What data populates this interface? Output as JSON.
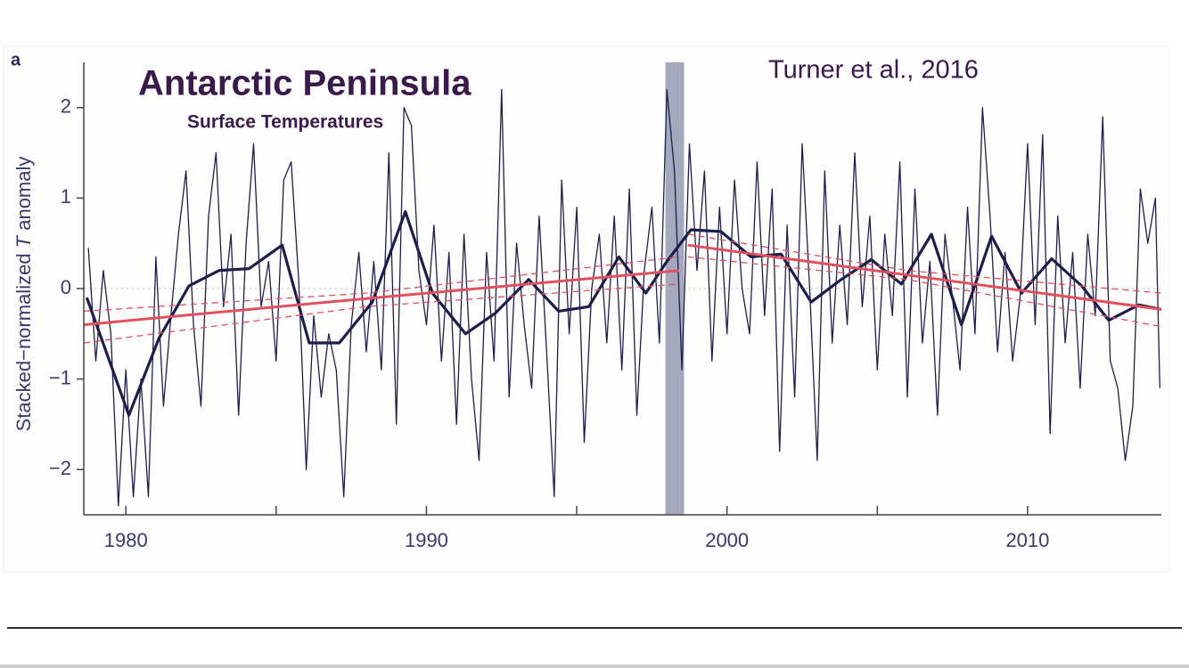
{
  "chart_data": {
    "type": "line",
    "panel_label": "a",
    "title": "Antarctic Peninsula",
    "subtitle": "Surface Temperatures",
    "annotation": "Turner et al., 2016",
    "ylabel": [
      "Stacked−normalized ",
      "T",
      " anomaly"
    ],
    "xlim": [
      1978.6,
      2014.45
    ],
    "ylim": [
      -2.5,
      2.5
    ],
    "xticks": [
      1980,
      1990,
      2000,
      2010
    ],
    "xminor_ticks": [
      1985,
      1995,
      2005
    ],
    "yticks": [
      {
        "value": -2,
        "label": "−2"
      },
      {
        "value": -1,
        "label": "−1"
      },
      0,
      1,
      2
    ],
    "reference_line": 0,
    "highlight": [
      1997.95,
      1998.57
    ],
    "series": [
      {
        "color": "#1e1e4a",
        "width": 1.3,
        "style": "solid",
        "x": [
          1978.75,
          1979,
          1979.25,
          1979.5,
          1979.75,
          1980,
          1980.25,
          1980.5,
          1980.75,
          1981,
          1981.25,
          1981.5,
          1981.75,
          1982,
          1982.25,
          1982.5,
          1982.75,
          1983,
          1983.25,
          1983.5,
          1983.75,
          1984,
          1984.25,
          1984.5,
          1984.75,
          1985,
          1985.25,
          1985.5,
          1985.75,
          1986,
          1986.25,
          1986.5,
          1986.75,
          1987,
          1987.25,
          1987.5,
          1987.75,
          1988,
          1988.25,
          1988.5,
          1988.75,
          1989,
          1989.25,
          1989.5,
          1989.75,
          1990,
          1990.25,
          1990.5,
          1990.75,
          1991,
          1991.25,
          1991.5,
          1991.75,
          1992,
          1992.25,
          1992.5,
          1992.75,
          1993,
          1993.25,
          1993.5,
          1993.75,
          1994,
          1994.25,
          1994.5,
          1994.75,
          1995,
          1995.25,
          1995.5,
          1995.75,
          1996,
          1996.25,
          1996.5,
          1996.75,
          1997,
          1997.25,
          1997.5,
          1997.75,
          1998,
          1998.25,
          1998.5,
          1998.75,
          1999,
          1999.25,
          1999.5,
          1999.75,
          2000,
          2000.25,
          2000.5,
          2000.75,
          2001,
          2001.25,
          2001.5,
          2001.75,
          2002,
          2002.25,
          2002.5,
          2002.75,
          2003,
          2003.25,
          2003.5,
          2003.75,
          2004,
          2004.25,
          2004.5,
          2004.75,
          2005,
          2005.25,
          2005.5,
          2005.75,
          2006,
          2006.25,
          2006.5,
          2006.75,
          2007,
          2007.25,
          2007.5,
          2007.75,
          2008,
          2008.25,
          2008.5,
          2008.75,
          2009,
          2009.25,
          2009.5,
          2009.75,
          2010,
          2010.25,
          2010.5,
          2010.75,
          2011,
          2011.25,
          2011.5,
          2011.75,
          2012,
          2012.25,
          2012.5,
          2012.75,
          2013,
          2013.25,
          2013.5,
          2013.75,
          2014,
          2014.25,
          2014.4
        ],
        "values": [
          0.45,
          -0.8,
          0.2,
          -0.5,
          -2.4,
          -0.9,
          -2.3,
          -1.0,
          -2.3,
          0.35,
          -1.3,
          -0.3,
          0.6,
          1.3,
          -0.4,
          -1.3,
          0.8,
          1.5,
          -0.2,
          0.6,
          -1.4,
          0.5,
          1.6,
          -0.2,
          0.3,
          -0.8,
          1.2,
          1.4,
          0.1,
          -2.0,
          -0.3,
          -1.2,
          -0.5,
          -0.9,
          -2.3,
          -0.4,
          0.4,
          -0.7,
          0.3,
          -0.9,
          1.5,
          -1.5,
          2.0,
          1.8,
          0.2,
          -0.4,
          0.7,
          -0.8,
          0.4,
          -1.5,
          0.6,
          -1.0,
          -1.9,
          0.4,
          -0.8,
          2.2,
          -1.2,
          0.5,
          -0.4,
          -1.1,
          0.8,
          -0.7,
          -2.3,
          1.2,
          -0.5,
          0.9,
          -1.7,
          0.0,
          0.6,
          -0.6,
          0.8,
          -0.9,
          1.1,
          -1.4,
          0.2,
          0.9,
          -0.6,
          2.2,
          1.3,
          -0.9,
          1.6,
          0.2,
          1.3,
          -0.8,
          0.9,
          -0.5,
          1.2,
          0.0,
          -0.5,
          1.4,
          -0.3,
          1.1,
          -1.8,
          0.7,
          -1.2,
          1.6,
          0.0,
          -1.9,
          1.3,
          -0.6,
          0.7,
          -0.4,
          1.5,
          -0.2,
          0.8,
          -0.9,
          0.6,
          -0.3,
          1.4,
          -1.2,
          1.1,
          -0.6,
          0.3,
          -1.4,
          0.6,
          -0.1,
          -0.9,
          0.9,
          -0.5,
          2.0,
          0.8,
          -0.7,
          0.4,
          -0.8,
          -0.1,
          1.6,
          -0.4,
          1.7,
          -1.6,
          0.8,
          -0.6,
          0.4,
          -1.1,
          0.6,
          -0.3,
          1.9,
          -0.8,
          -1.1,
          -1.9,
          -1.3,
          1.1,
          0.5,
          1.0,
          -1.1
        ]
      },
      {
        "color": "#1e1e4a",
        "width": 3.2,
        "style": "solid",
        "x": [
          1978.7,
          1980.1,
          1981.1,
          1982.1,
          1983.1,
          1984.1,
          1985.2,
          1986.1,
          1987.1,
          1988.2,
          1989.3,
          1990.2,
          1991.3,
          1992.3,
          1993.4,
          1994.4,
          1995.4,
          1996.4,
          1997.3,
          1998.0,
          1998.8,
          1999.8,
          2000.8,
          2001.8,
          2002.8,
          2003.8,
          2004.8,
          2005.8,
          2006.8,
          2007.8,
          2008.8,
          2009.8,
          2010.8,
          2011.8,
          2012.7,
          2013.7,
          2014.45
        ],
        "values": [
          -0.1,
          -1.4,
          -0.55,
          0.03,
          0.2,
          0.22,
          0.48,
          -0.6,
          -0.6,
          -0.15,
          0.85,
          -0.05,
          -0.5,
          -0.27,
          0.1,
          -0.25,
          -0.2,
          0.35,
          -0.05,
          0.3,
          0.65,
          0.63,
          0.35,
          0.38,
          -0.15,
          0.1,
          0.32,
          0.05,
          0.6,
          -0.4,
          0.58,
          -0.05,
          0.33,
          0.03,
          -0.35,
          -0.18,
          -0.23
        ]
      },
      {
        "color": "#e0505f",
        "width": 3,
        "style": "solid",
        "x": [
          1978.6,
          1988,
          1998.4,
          1998.5,
          1998.7,
          2006,
          2014.45
        ],
        "values": [
          -0.4,
          -0.11,
          0.2,
          null,
          0.48,
          0.15,
          -0.23
        ]
      },
      {
        "color": "#e0505f",
        "width": 1.3,
        "style": "dashed",
        "x": [
          1978.6,
          1988,
          1998.4,
          1998.5,
          1998.7,
          2006,
          2014.45
        ],
        "values": [
          -0.25,
          -0.05,
          0.35,
          null,
          0.6,
          0.2,
          -0.05
        ]
      },
      {
        "color": "#e0505f",
        "width": 1.3,
        "style": "dashed",
        "x": [
          1978.6,
          1988,
          1998.4,
          1998.5,
          1998.7,
          2006,
          2014.45
        ],
        "values": [
          -0.6,
          -0.2,
          0.05,
          null,
          0.35,
          0.1,
          -0.42
        ]
      }
    ]
  }
}
